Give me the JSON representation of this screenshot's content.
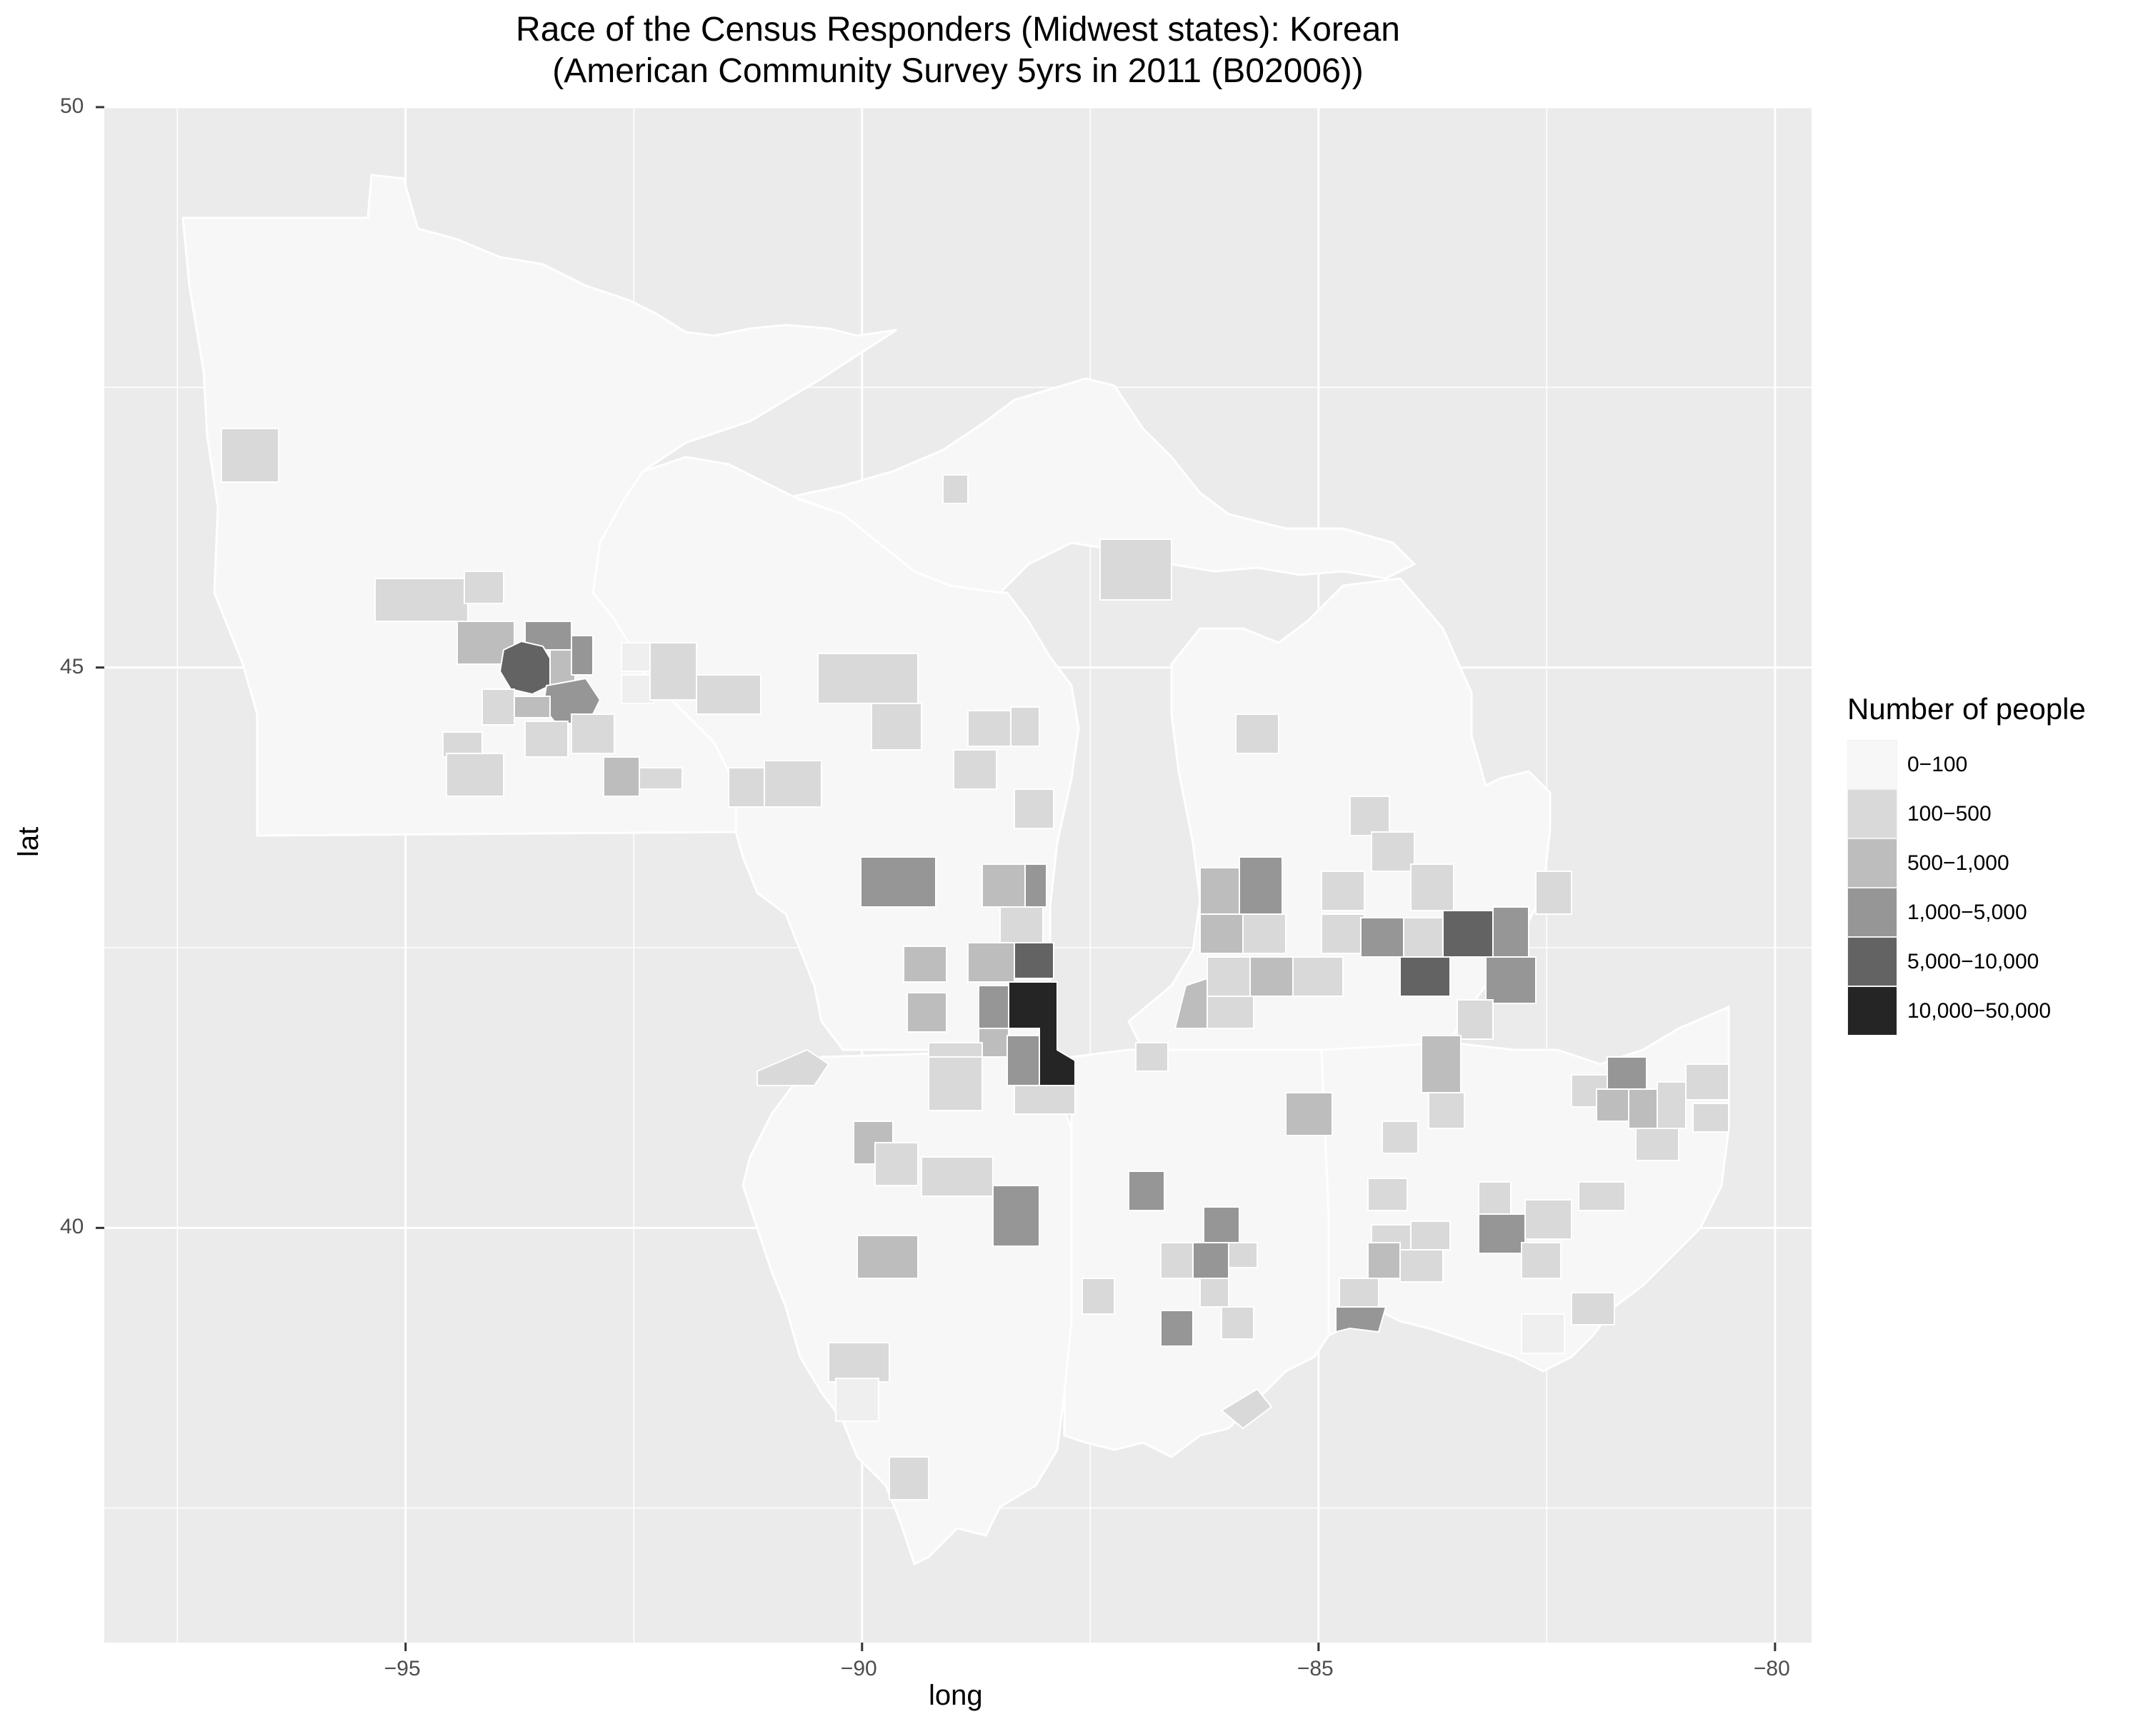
{
  "chart_data": {
    "type": "choropleth-map",
    "title": "Race of the Census Responders (Midwest states): Korean",
    "subtitle": "(American Community Survey 5yrs in 2011 (B02006))",
    "xlabel": "long",
    "ylabel": "lat",
    "xlim": [
      -98.3,
      -79.6
    ],
    "ylim": [
      36.3,
      50.0
    ],
    "x_ticks": [
      -95,
      -90,
      -85,
      -80
    ],
    "y_ticks": [
      40,
      45,
      50
    ],
    "grid": true,
    "panel_color": "#ebebeb",
    "legend": {
      "title": "Number of people",
      "placement": "right",
      "items": [
        {
          "label": "0−100",
          "color": "#f7f7f7"
        },
        {
          "label": "100−500",
          "color": "#d9d9d9"
        },
        {
          "label": "500−1,000",
          "color": "#bdbdbd"
        },
        {
          "label": "1,000−5,000",
          "color": "#969696"
        },
        {
          "label": "5,000−10,000",
          "color": "#636363"
        },
        {
          "label": "10,000−50,000",
          "color": "#252525"
        }
      ]
    }
  }
}
